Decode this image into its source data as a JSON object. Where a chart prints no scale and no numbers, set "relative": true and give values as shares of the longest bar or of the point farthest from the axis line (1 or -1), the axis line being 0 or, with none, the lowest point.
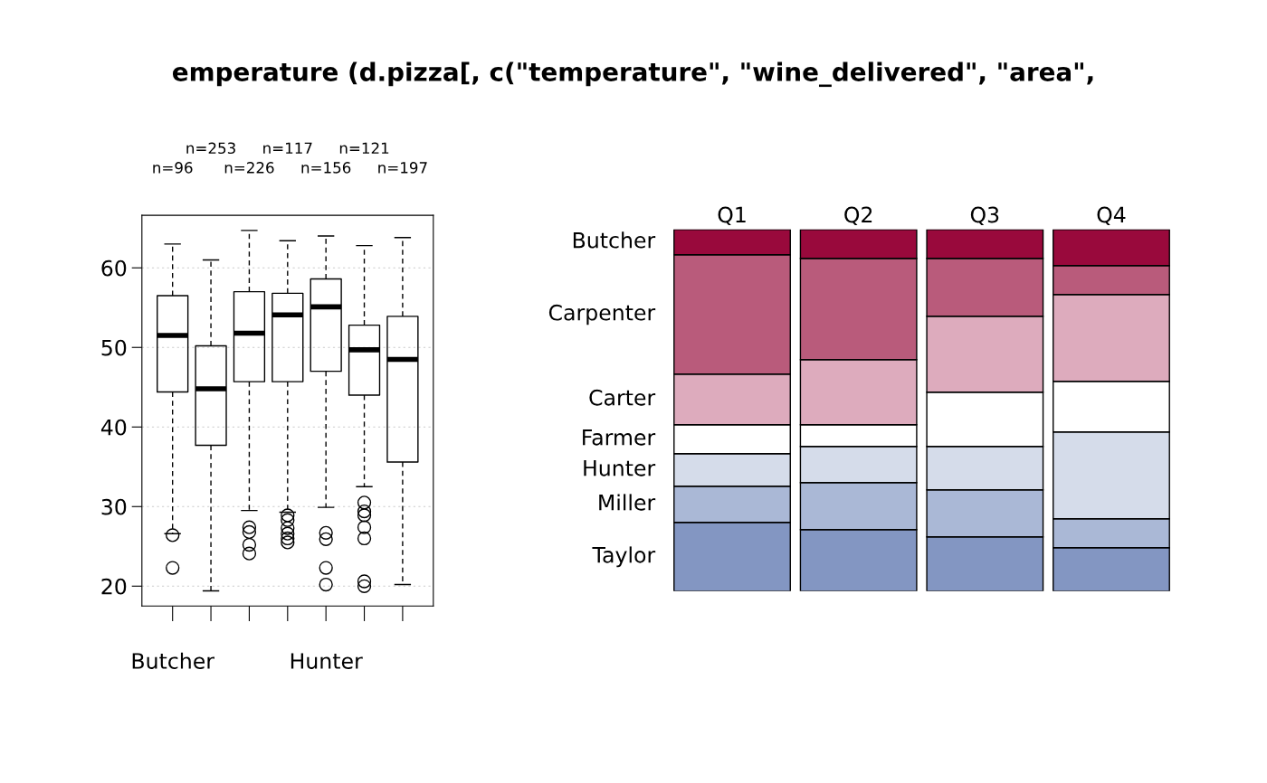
{
  "chart_data": [
    {
      "type": "box",
      "title": "emperature (d.pizza[, c(\"temperature\", \"wine_delivered\", \"area\",",
      "categories": [
        "Butcher",
        null,
        null,
        null,
        "Hunter",
        null,
        null
      ],
      "boxes": [
        {
          "low": 26.6,
          "q1": 44.4,
          "median": 51.5,
          "q3": 56.5,
          "high": 63,
          "outliers": [
            26.4,
            22.3
          ]
        },
        {
          "low": 19.4,
          "q1": 37.7,
          "median": 44.8,
          "q3": 50.2,
          "high": 61.0
        },
        {
          "low": 29.5,
          "q1": 45.7,
          "median": 51.8,
          "q3": 57.0,
          "high": 64.7,
          "outliers": [
            27.4,
            26.8,
            25.2,
            24.1
          ]
        },
        {
          "low": 29.3,
          "q1": 45.7,
          "median": 54.1,
          "q3": 56.8,
          "high": 63.4,
          "outliers": [
            28.9,
            28.3,
            27.3,
            26.6,
            26.0,
            25.5
          ]
        },
        {
          "low": 29.9,
          "q1": 47.0,
          "median": 55.1,
          "q3": 58.6,
          "high": 64.0,
          "outliers": [
            26.7,
            25.9,
            22.3,
            20.2
          ]
        },
        {
          "low": 32.5,
          "q1": 44.0,
          "median": 49.7,
          "q3": 52.8,
          "high": 62.8,
          "outliers": [
            30.5,
            29.4,
            28.9,
            27.4,
            26.0,
            20.6,
            20.0
          ]
        },
        {
          "low": 20.2,
          "q1": 35.6,
          "median": 48.5,
          "q3": 53.9,
          "high": 63.8
        }
      ],
      "annotations": [
        "n=96",
        "n=253",
        "n=226",
        "n=117",
        "n=156",
        "n=121",
        "n=197"
      ],
      "ylim": [
        17.5,
        66.6
      ],
      "yticks": [
        20,
        30,
        40,
        50,
        60
      ],
      "grid": "y"
    },
    {
      "type": "bar",
      "stacked": true,
      "relative": true,
      "legend": false,
      "categories": [
        "Q1",
        "Q2",
        "Q3",
        "Q4"
      ],
      "series": [
        {
          "name": "Taylor",
          "color": "#8396c2",
          "values": [
            0.19,
            0.17,
            0.15,
            0.12
          ]
        },
        {
          "name": "Miller",
          "color": "#aab8d6",
          "values": [
            0.1,
            0.13,
            0.13,
            0.08
          ]
        },
        {
          "name": "Hunter",
          "color": "#d5dcea",
          "values": [
            0.09,
            0.1,
            0.12,
            0.24
          ]
        },
        {
          "name": "Farmer",
          "color": "#ffffff",
          "values": [
            0.08,
            0.06,
            0.15,
            0.14
          ]
        },
        {
          "name": "Carter",
          "color": "#ddabbd",
          "values": [
            0.14,
            0.18,
            0.21,
            0.24
          ]
        },
        {
          "name": "Carpenter",
          "color": "#b95b7b",
          "values": [
            0.33,
            0.28,
            0.16,
            0.08
          ]
        },
        {
          "name": "Butcher",
          "color": "#99093c",
          "values": [
            0.07,
            0.08,
            0.08,
            0.1
          ]
        }
      ]
    }
  ]
}
